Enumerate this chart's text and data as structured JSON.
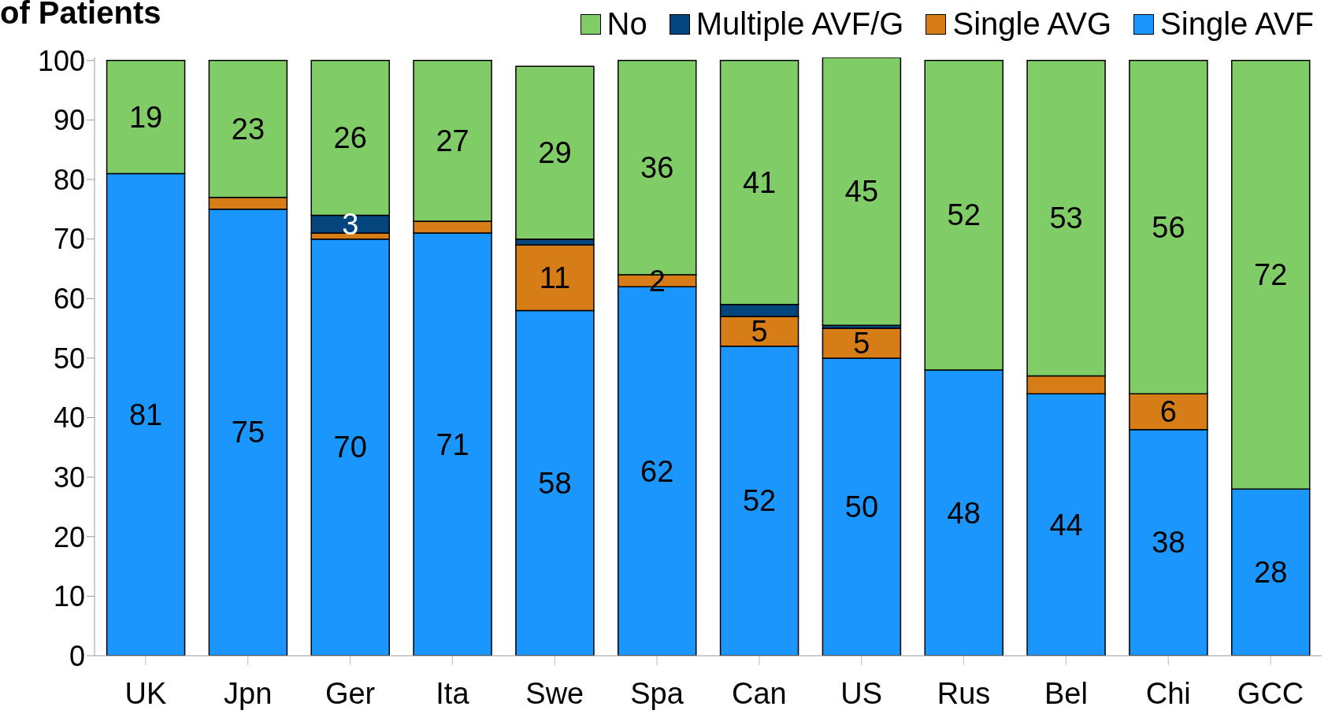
{
  "chart_data": {
    "type": "bar",
    "stacked": true,
    "ylabel": "of Patients",
    "categories": [
      "UK",
      "Jpn",
      "Ger",
      "Ita",
      "Swe",
      "Spa",
      "Can",
      "US",
      "Rus",
      "Bel",
      "Chi",
      "GCC"
    ],
    "series": [
      {
        "name": "Single AVF",
        "color": "#1a96fc",
        "values": [
          81,
          75,
          70,
          71,
          58,
          62,
          52,
          50,
          48,
          44,
          38,
          28
        ],
        "value_labels": [
          "81",
          "75",
          "70",
          "71",
          "58",
          "62",
          "52",
          "50",
          "48",
          "44",
          "38",
          "28"
        ]
      },
      {
        "name": "Single AVG",
        "color": "#d67d18",
        "values": [
          0,
          2,
          1,
          2,
          11,
          2,
          5,
          5,
          0,
          3,
          6,
          0
        ],
        "value_labels": [
          null,
          null,
          null,
          null,
          "11",
          "2",
          "5",
          "5",
          null,
          null,
          "6",
          null
        ]
      },
      {
        "name": "Multiple AVF/G",
        "color": "#03457c",
        "values": [
          0,
          0,
          3,
          0,
          1,
          0,
          2,
          0.5,
          0,
          0,
          0,
          0
        ],
        "value_labels": [
          null,
          null,
          "3",
          null,
          null,
          null,
          null,
          null,
          null,
          null,
          null,
          null
        ]
      },
      {
        "name": "No",
        "color": "#80cc66",
        "values": [
          19,
          23,
          26,
          27,
          29,
          36,
          41,
          45,
          52,
          53,
          56,
          72
        ],
        "value_labels": [
          "19",
          "23",
          "26",
          "27",
          "29",
          "36",
          "41",
          "45",
          "52",
          "53",
          "56",
          "72"
        ]
      }
    ],
    "ylim": [
      0,
      100.5
    ],
    "yticks": [
      0,
      10,
      20,
      30,
      40,
      50,
      60,
      70,
      80,
      90,
      100
    ],
    "grid": false,
    "legend": "top right"
  }
}
